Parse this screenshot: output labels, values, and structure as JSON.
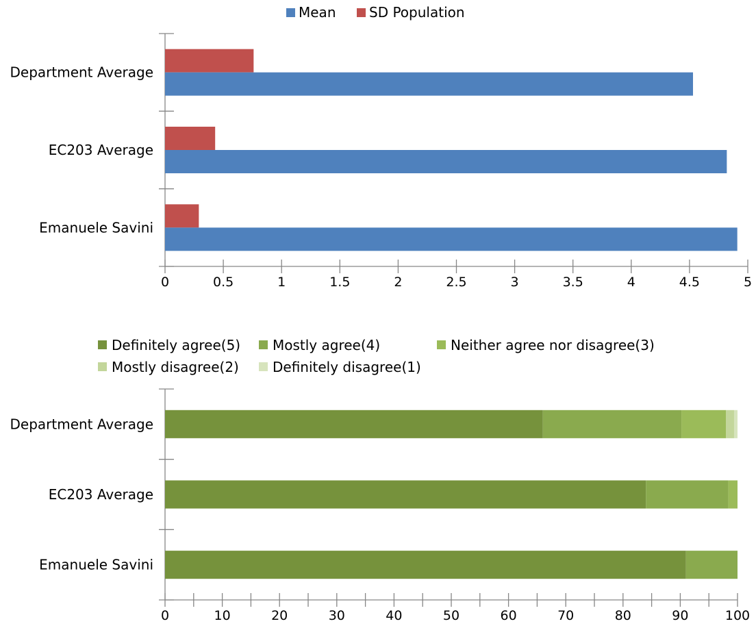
{
  "chart_data": [
    {
      "type": "bar",
      "orientation": "horizontal",
      "categories": [
        "Department Average",
        "EC203 Average",
        "Emanuele Savini"
      ],
      "series": [
        {
          "name": "Mean",
          "values": [
            4.53,
            4.82,
            4.91
          ],
          "color": "#4F81BD"
        },
        {
          "name": "SD Population",
          "values": [
            0.76,
            0.43,
            0.29
          ],
          "color": "#C0504D"
        }
      ],
      "xlim": [
        0,
        5
      ],
      "xticks": [
        "0",
        "0.5",
        "1",
        "1.5",
        "2",
        "2.5",
        "3",
        "3.5",
        "4",
        "4.5",
        "5"
      ],
      "legend_position": "top"
    },
    {
      "type": "bar",
      "stacked": true,
      "orientation": "horizontal",
      "categories": [
        "Department Average",
        "EC203 Average",
        "Emanuele Savini"
      ],
      "series": [
        {
          "name": "Definitely agree(5)",
          "values": [
            66,
            84,
            91
          ],
          "color": "#76923C"
        },
        {
          "name": "Mostly agree(4)",
          "values": [
            24.2,
            14.4,
            9
          ],
          "color": "#8AAA4E"
        },
        {
          "name": "Neither agree nor disagree(3)",
          "values": [
            7.8,
            1.6,
            0
          ],
          "color": "#9BBB59"
        },
        {
          "name": "Mostly disagree(2)",
          "values": [
            1.4,
            0,
            0
          ],
          "color": "#C3D69B"
        },
        {
          "name": "Definitely disagree(1)",
          "values": [
            0.6,
            0,
            0
          ],
          "color": "#D7E4BD"
        }
      ],
      "xlim": [
        0,
        100
      ],
      "xticks": [
        "0",
        "10",
        "20",
        "30",
        "40",
        "50",
        "60",
        "70",
        "80",
        "90",
        "100"
      ],
      "legend_position": "top"
    }
  ]
}
